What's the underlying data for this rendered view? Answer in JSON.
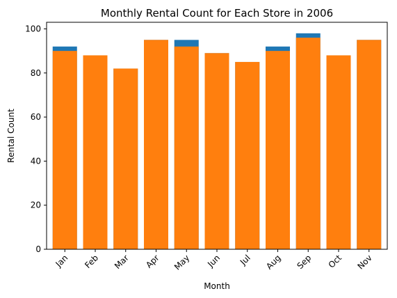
{
  "chart_data": {
    "type": "bar",
    "title": "Monthly Rental Count for Each Store in 2006",
    "xlabel": "Month",
    "ylabel": "Rental Count",
    "categories": [
      "Jan",
      "Feb",
      "Mar",
      "Apr",
      "May",
      "Jun",
      "Jul",
      "Aug",
      "Sep",
      "Oct",
      "Nov"
    ],
    "series": [
      {
        "values": [
          92,
          88,
          82,
          95,
          95,
          89,
          85,
          92,
          98,
          88,
          95
        ],
        "color": "#1f77b4"
      },
      {
        "values": [
          90,
          88,
          82,
          95,
          92,
          89,
          85,
          90,
          96,
          88,
          95
        ],
        "color": "#ff7f0e"
      }
    ],
    "ylim": [
      0,
      103
    ],
    "yticks": [
      0,
      20,
      40,
      60,
      80,
      100
    ],
    "x_tick_rotation_deg": 45,
    "grid": false,
    "legend": "none"
  }
}
